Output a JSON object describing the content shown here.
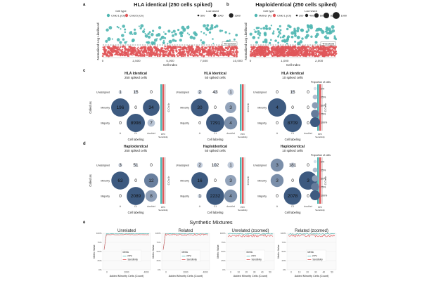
{
  "panel_labels": {
    "a": "a",
    "b": "b",
    "c": "c",
    "d": "d",
    "e": "e"
  },
  "scatter_panels": [
    {
      "title": "HLA identical (250 cells spiked)",
      "ylabel": "Normalized Log Likelihood",
      "xlabel": "Cell Index",
      "xticks": [
        "0",
        "2,500",
        "5,000",
        "7,500",
        "10,000"
      ],
      "xmax": 10000,
      "legend_color_title": "Cell type",
      "legend_color_items": [
        "Child 1 (Ch)",
        "Child 5 (Ch)"
      ],
      "legend_size_title": "Loci Used",
      "legend_size_items": [
        "500",
        "1000",
        "1500"
      ],
      "threshold_label": "Threshold",
      "colors": {
        "upper": "#4fb6b1",
        "lower": "#e0575a",
        "threshold": "#333333"
      }
    },
    {
      "title": "Haploidentical (250 cells spiked)",
      "ylabel": "Normalized Log Likelihood",
      "xlabel": "Cell Index",
      "xticks": [
        "0",
        "1,000",
        "2,000"
      ],
      "xmax": 2500,
      "legend_color_title": "Cell type",
      "legend_color_items": [
        "Mother (A)",
        "Child 1 (Ch)"
      ],
      "legend_size_title": "Loci Used",
      "legend_size_items": [
        "200",
        "400",
        "600",
        "833",
        "1000"
      ],
      "threshold_label": "Threshold",
      "colors": {
        "upper": "#4fb6b1",
        "lower": "#e0575a",
        "threshold": "#333333"
      }
    }
  ],
  "confusion_rows": [
    {
      "label": "c",
      "matrices": [
        {
          "title": "HLA Identical",
          "subtitle": "250 spiked cells",
          "values": [
            [
              1,
              15,
              0
            ],
            [
              196,
              0,
              34
            ],
            [
              0,
              8998,
              7
            ]
          ]
        },
        {
          "title": "HLA Identical",
          "subtitle": "50 spiked cells",
          "values": [
            [
              2,
              43,
              1
            ],
            [
              30,
              0,
              3
            ],
            [
              0,
              7291,
              4
            ]
          ]
        },
        {
          "title": "HLA Identical",
          "subtitle": "10 spiked cells",
          "values": [
            [
              0,
              15,
              0
            ],
            [
              4,
              0,
              0
            ],
            [
              0,
              8709,
              0
            ]
          ]
        }
      ],
      "side_labels": [
        "C Ch Ur",
        "C Ch Ur"
      ]
    },
    {
      "label": "d",
      "matrices": [
        {
          "title": "Haploidentical",
          "subtitle": "250 spiked cells",
          "values": [
            [
              3,
              51,
              0
            ],
            [
              63,
              0,
              12
            ],
            [
              0,
              2089,
              8
            ]
          ]
        },
        {
          "title": "Haploidentical",
          "subtitle": "50 spiked cells",
          "values": [
            [
              2,
              102,
              1
            ],
            [
              16,
              0,
              3
            ],
            [
              1,
              2232,
              4
            ]
          ]
        },
        {
          "title": "Haploidentical",
          "subtitle": "10 spiked cells",
          "values": [
            [
              3,
              181,
              0
            ],
            [
              3,
              0,
              3
            ],
            [
              0,
              2078,
              0
            ]
          ]
        }
      ],
      "side_labels": [
        "C Ch Ur",
        "C Ch Ur"
      ]
    }
  ],
  "confusion_axes": {
    "ylabel": "Called as",
    "xlabel": "Cell labeling",
    "rows": [
      "Unassigned",
      "Minority",
      "Majority"
    ],
    "cols": [
      "A",
      "C1",
      "doublet"
    ],
    "legend_title": "Proportion of cells",
    "legend_items": [
      "0%",
      "25%",
      "50%",
      "75%",
      "100%"
    ],
    "bar_labels": [
      "PPV",
      "Sensitivity"
    ]
  },
  "mixtures": {
    "title": "Synthetic Mixtures",
    "panels": [
      {
        "title": "Unrelated",
        "ylabel": "Metric Value",
        "xlabel": "Added Minority Cells (Count)",
        "xticks": [
          "0",
          "2000",
          "4000"
        ],
        "yticks": [
          "100%",
          "75%",
          "50%",
          "25%",
          "0%"
        ],
        "zoomed": false
      },
      {
        "title": "Related",
        "ylabel": "Metric Value",
        "xlabel": "Added Minority Cells (Count)",
        "xticks": [
          "0",
          "2000",
          "4000"
        ],
        "yticks": [
          "100%",
          "75%",
          "50%",
          "25%",
          "0%"
        ],
        "zoomed": false
      },
      {
        "title": "Unrelated (zoomed)",
        "ylabel": "Metric Value",
        "xlabel": "Added Minority Cells (Count)",
        "xticks": [
          "0",
          "10",
          "20",
          "30",
          "40",
          "50"
        ],
        "yticks": [
          "100%",
          "75%",
          "50%",
          "25%",
          "0%"
        ],
        "zoomed": true
      },
      {
        "title": "Related (zoomed)",
        "ylabel": "Metric Value",
        "xlabel": "Added Minority Cells (Count)",
        "xticks": [
          "0",
          "10",
          "20",
          "30",
          "40",
          "50"
        ],
        "yticks": [
          "100%",
          "75%",
          "50%",
          "25%",
          "0%"
        ],
        "zoomed": true
      }
    ],
    "legend_title": "Metric",
    "legend_items": [
      "PPV",
      "Sensitivity"
    ],
    "colors": {
      "ppv": "#4fb6b1",
      "sens": "#e0575a"
    }
  },
  "colors": {
    "dark": "#3d5a80",
    "teal": "#4fb6b1",
    "red": "#e0575a",
    "grey": "#999999"
  }
}
